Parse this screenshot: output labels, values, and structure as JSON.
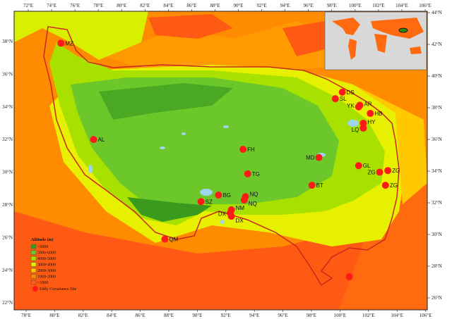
{
  "map": {
    "lon_ticks_top": [
      "72°E",
      "74°E",
      "76°E",
      "78°E",
      "80°E",
      "82°E",
      "84°E",
      "86°E",
      "88°E",
      "90°E",
      "92°E",
      "94°E",
      "96°E",
      "98°E",
      "100°E",
      "102°E",
      "104°E",
      "106°E"
    ],
    "lon_ticks_bottom": [
      "78°E",
      "80°E",
      "82°E",
      "84°E",
      "86°E",
      "88°E",
      "90°E",
      "92°E",
      "94°E",
      "96°E",
      "98°E",
      "100°E",
      "102°E",
      "104°E",
      "106°E"
    ],
    "lat_ticks_left": [
      "38°N",
      "36°N",
      "34°N",
      "32°N",
      "30°N",
      "28°N",
      "26°N",
      "24°N",
      "22°N"
    ],
    "lat_ticks_right": [
      "44°N",
      "42°N",
      "40°N",
      "38°N",
      "36°N",
      "34°N",
      "32°N",
      "30°N",
      "28°N",
      "26°N"
    ],
    "colors": {
      "lt1000": "#ff5a14",
      "1000_2000": "#ff8c00",
      "2000_3000": "#ffc800",
      "3000_4000": "#e6f000",
      "4000_5000": "#a8e000",
      "5000_6000": "#6cc82a",
      "gt6000": "#3a9a1e",
      "lake": "#9fd4f0",
      "boundary": "#c8281e",
      "site": "#ff1a1a"
    }
  },
  "legend": {
    "title": "Altitude (m)",
    "items": [
      ">6000",
      "5000-6000",
      "4000-5000",
      "3000-4000",
      "2000-3000",
      "1000-2000",
      "<1000"
    ],
    "site_label": "Eddy Covariance Site"
  },
  "sites": [
    {
      "name": "MZ",
      "lon": 74.8,
      "lat": 37.9
    },
    {
      "name": "AL",
      "lon": 77.6,
      "lat": 32.0
    },
    {
      "name": "FH",
      "lon": 90.4,
      "lat": 31.4
    },
    {
      "name": "TG",
      "lon": 90.8,
      "lat": 29.9
    },
    {
      "name": "MD",
      "lon": 96.9,
      "lat": 30.9
    },
    {
      "name": "BT",
      "lon": 96.3,
      "lat": 29.2
    },
    {
      "name": "GL",
      "lon": 100.3,
      "lat": 30.4
    },
    {
      "name": "ZG",
      "lon": 102.1,
      "lat": 30.0
    },
    {
      "name": "ZG",
      "lon": 102.8,
      "lat": 30.1
    },
    {
      "name": "ZG",
      "lon": 102.6,
      "lat": 29.2
    },
    {
      "name": "SL",
      "lon": 98.3,
      "lat": 34.5
    },
    {
      "name": "DS",
      "lon": 98.9,
      "lat": 34.9
    },
    {
      "name": "YK",
      "lon": 100.3,
      "lat": 34.0
    },
    {
      "name": "AR",
      "lon": 100.4,
      "lat": 34.1
    },
    {
      "name": "HB",
      "lon": 101.3,
      "lat": 33.6
    },
    {
      "name": "HY",
      "lon": 100.7,
      "lat": 33.0
    },
    {
      "name": "LQ",
      "lon": 100.7,
      "lat": 32.7
    },
    {
      "name": "BG",
      "lon": 88.3,
      "lat": 28.6
    },
    {
      "name": "SZ",
      "lon": 86.8,
      "lat": 28.2
    },
    {
      "name": "NQ",
      "lon": 90.6,
      "lat": 28.5
    },
    {
      "name": "NQ",
      "lon": 90.5,
      "lat": 28.3
    },
    {
      "name": "NM",
      "lon": 89.4,
      "lat": 27.7
    },
    {
      "name": "DX",
      "lon": 89.3,
      "lat": 27.5
    },
    {
      "name": "DX",
      "lon": 89.4,
      "lat": 27.3
    },
    {
      "name": "QM",
      "lon": 83.7,
      "lat": 25.9
    },
    {
      "name": "",
      "lon": 99.5,
      "lat": 23.6
    }
  ]
}
